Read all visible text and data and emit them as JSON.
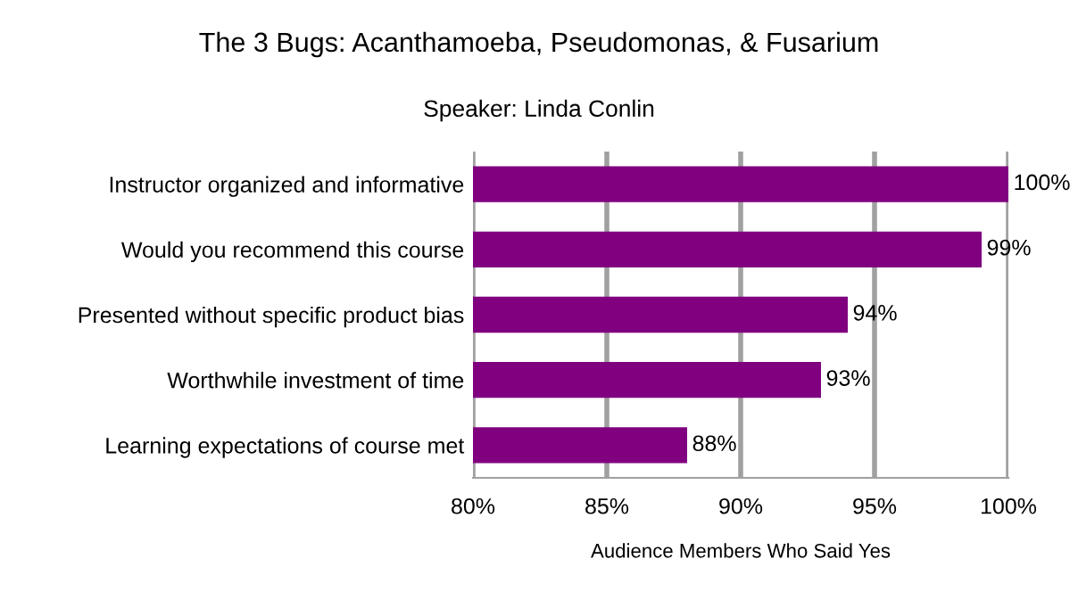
{
  "chart_data": {
    "type": "bar",
    "orientation": "horizontal",
    "title": "The 3 Bugs: Acanthamoeba, Pseudomonas, & Fusarium",
    "subtitle": "Speaker: Linda Conlin",
    "xlabel": "Audience Members Who Said Yes",
    "categories": [
      "Instructor organized and informative",
      "Would you recommend this course",
      "Presented without specific product bias",
      "Worthwhile investment of time",
      "Learning expectations of course met"
    ],
    "values": [
      100,
      99,
      94,
      93,
      88
    ],
    "value_labels": [
      "100%",
      "99%",
      "94%",
      "93%",
      "88%"
    ],
    "color": "#800080",
    "xlim": [
      80,
      100
    ],
    "xticks": [
      {
        "value": 80,
        "label": "80%"
      },
      {
        "value": 85,
        "label": "85%"
      },
      {
        "value": 90,
        "label": "90%"
      },
      {
        "value": 95,
        "label": "95%"
      },
      {
        "value": 100,
        "label": "100%"
      }
    ],
    "grid": "x"
  }
}
